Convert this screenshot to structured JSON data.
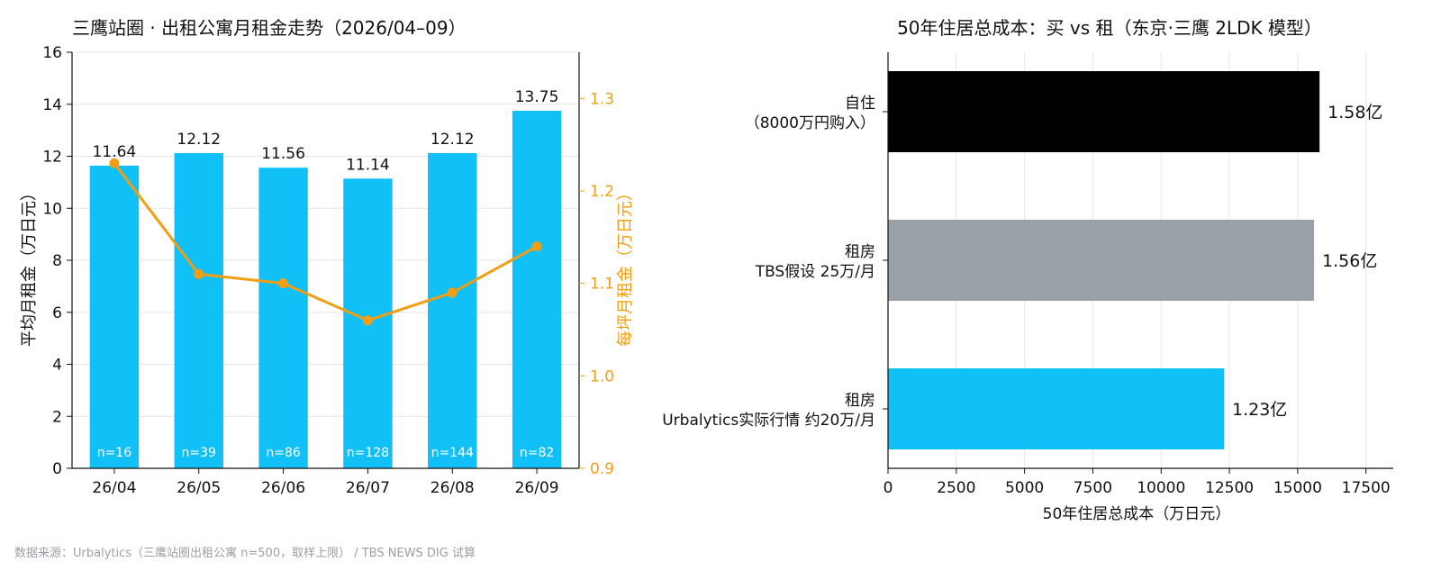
{
  "source_note": "数据来源：Urbalytics（三鹰站圈出租公寓 n=500，取样上限） / TBS NEWS DIG 试算",
  "chart_data": [
    {
      "type": "bar",
      "title": "三鹰站圈 · 出租公寓月租金走势（2026/04–09）",
      "categories": [
        "26/04",
        "26/05",
        "26/06",
        "26/07",
        "26/08",
        "26/09"
      ],
      "ylabel": "平均月租金（万日元）",
      "ylim": [
        0,
        16
      ],
      "yticks": [
        0,
        2,
        4,
        6,
        8,
        10,
        12,
        14,
        16
      ],
      "grid": true,
      "series": [
        {
          "kind": "bar",
          "values": [
            11.64,
            12.12,
            11.56,
            11.14,
            12.12,
            13.75
          ],
          "data_labels": [
            "11.64",
            "12.12",
            "11.56",
            "11.14",
            "12.12",
            "13.75"
          ],
          "inner_labels": [
            "n=16",
            "n=39",
            "n=86",
            "n=128",
            "n=144",
            "n=82"
          ],
          "color": "#12c0f8"
        },
        {
          "kind": "line",
          "axis": "right",
          "values": [
            1.23,
            1.11,
            1.1,
            1.06,
            1.09,
            1.14
          ],
          "color": "#f29e12"
        }
      ],
      "y2label": "每坪月租金（万日元）",
      "y2lim": [
        0.9,
        1.35
      ],
      "y2ticks": [
        "0.9",
        "1.0",
        "1.1",
        "1.2",
        "1.3"
      ],
      "y2color": "#f29e12"
    },
    {
      "type": "bar",
      "orientation": "horizontal",
      "title": "50年住居总成本：买 vs 租（东京·三鹰 2LDK 模型）",
      "categories": [
        [
          "自住",
          "（8000万円购入）"
        ],
        [
          "租房",
          "TBS假设 25万/月"
        ],
        [
          "租房",
          "Urbalytics实际行情 约20万/月"
        ]
      ],
      "values": [
        15800,
        15600,
        12300
      ],
      "data_labels": [
        "1.58亿",
        "1.56亿",
        "1.23亿"
      ],
      "colors": [
        "#000000",
        "#9aa0a8",
        "#12c0f8"
      ],
      "xlabel": "50年住居总成本（万日元）",
      "xlim": [
        0,
        18500
      ],
      "xticks": [
        "0",
        "2500",
        "5000",
        "7500",
        "10000",
        "12500",
        "15000",
        "17500"
      ],
      "grid": true
    }
  ]
}
